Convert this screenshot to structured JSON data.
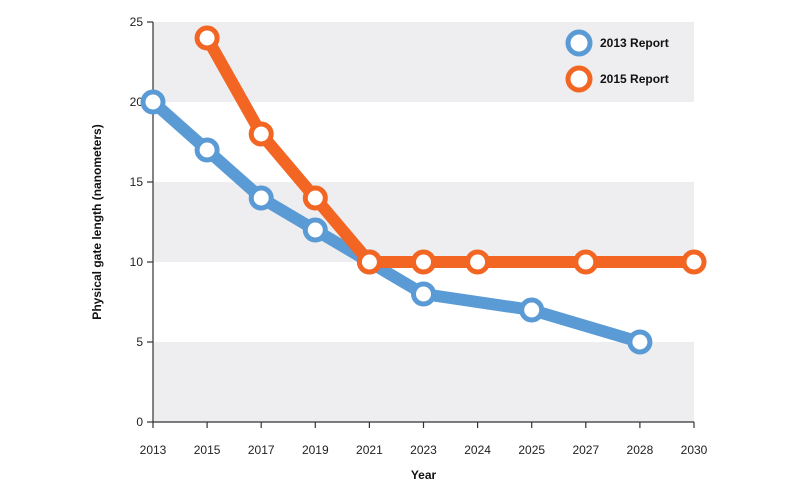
{
  "chart_data": {
    "type": "line",
    "title": "",
    "xlabel": "Year",
    "ylabel": "Physical gate length (nanometers)",
    "categories": [
      "2013",
      "2015",
      "2017",
      "2019",
      "2021",
      "2023",
      "2024",
      "2025",
      "2027",
      "2028",
      "2030"
    ],
    "ylim": [
      0,
      25
    ],
    "yticks": [
      0,
      5,
      10,
      15,
      20,
      25
    ],
    "grid": "alternating horizontal bands",
    "legend_position": "top-right",
    "series": [
      {
        "name": "2013 Report",
        "color": "#5b9bd5",
        "values": [
          20,
          17,
          14,
          12,
          10,
          8,
          null,
          7,
          null,
          5,
          null
        ]
      },
      {
        "name": "2015 Report",
        "color": "#f26522",
        "values": [
          null,
          24,
          18,
          14,
          10,
          10,
          10,
          null,
          10,
          null,
          10
        ]
      }
    ],
    "band_color": "#eeedef",
    "axis_color": "#333333"
  }
}
